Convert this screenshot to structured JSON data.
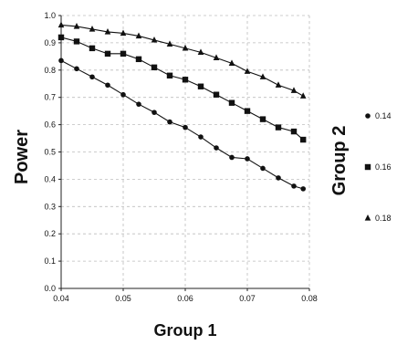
{
  "chart_data": {
    "type": "line",
    "xlabel": "Group 1",
    "ylabel": "Power",
    "legend_title": "Group 2",
    "legend_position": "right",
    "grid": true,
    "grid_style": "dashed",
    "xlim": [
      0.04,
      0.08
    ],
    "ylim": [
      0.0,
      1.0
    ],
    "x_ticks": [
      0.04,
      0.05,
      0.06,
      0.07,
      0.08
    ],
    "x_tick_labels": [
      "0.04",
      "0.05",
      "0.06",
      "0.07",
      "0.08"
    ],
    "y_ticks": [
      0.0,
      0.1,
      0.2,
      0.3,
      0.4,
      0.5,
      0.6,
      0.7,
      0.8,
      0.9,
      1.0
    ],
    "y_tick_labels": [
      "0.0",
      "0.1",
      "0.2",
      "0.3",
      "0.4",
      "0.5",
      "0.6",
      "0.7",
      "0.8",
      "0.9",
      "1.0"
    ],
    "x": [
      0.04,
      0.0425,
      0.045,
      0.0475,
      0.05,
      0.0525,
      0.055,
      0.0575,
      0.06,
      0.0625,
      0.065,
      0.0675,
      0.07,
      0.0725,
      0.075,
      0.0775,
      0.079
    ],
    "series": [
      {
        "name": "0.14",
        "marker": "circle",
        "values": [
          0.835,
          0.805,
          0.775,
          0.745,
          0.71,
          0.675,
          0.645,
          0.61,
          0.59,
          0.555,
          0.515,
          0.48,
          0.475,
          0.44,
          0.405,
          0.375,
          0.365
        ]
      },
      {
        "name": "0.16",
        "marker": "square",
        "values": [
          0.92,
          0.905,
          0.88,
          0.86,
          0.86,
          0.84,
          0.81,
          0.78,
          0.765,
          0.74,
          0.71,
          0.68,
          0.65,
          0.62,
          0.59,
          0.575,
          0.545
        ]
      },
      {
        "name": "0.18",
        "marker": "triangle",
        "values": [
          0.965,
          0.96,
          0.95,
          0.94,
          0.935,
          0.925,
          0.91,
          0.895,
          0.88,
          0.865,
          0.845,
          0.825,
          0.795,
          0.775,
          0.745,
          0.725,
          0.705
        ]
      }
    ],
    "colors": {
      "line": "#111111",
      "marker": "#111111",
      "axis": "#222222",
      "grid": "#bdbdbd"
    }
  }
}
